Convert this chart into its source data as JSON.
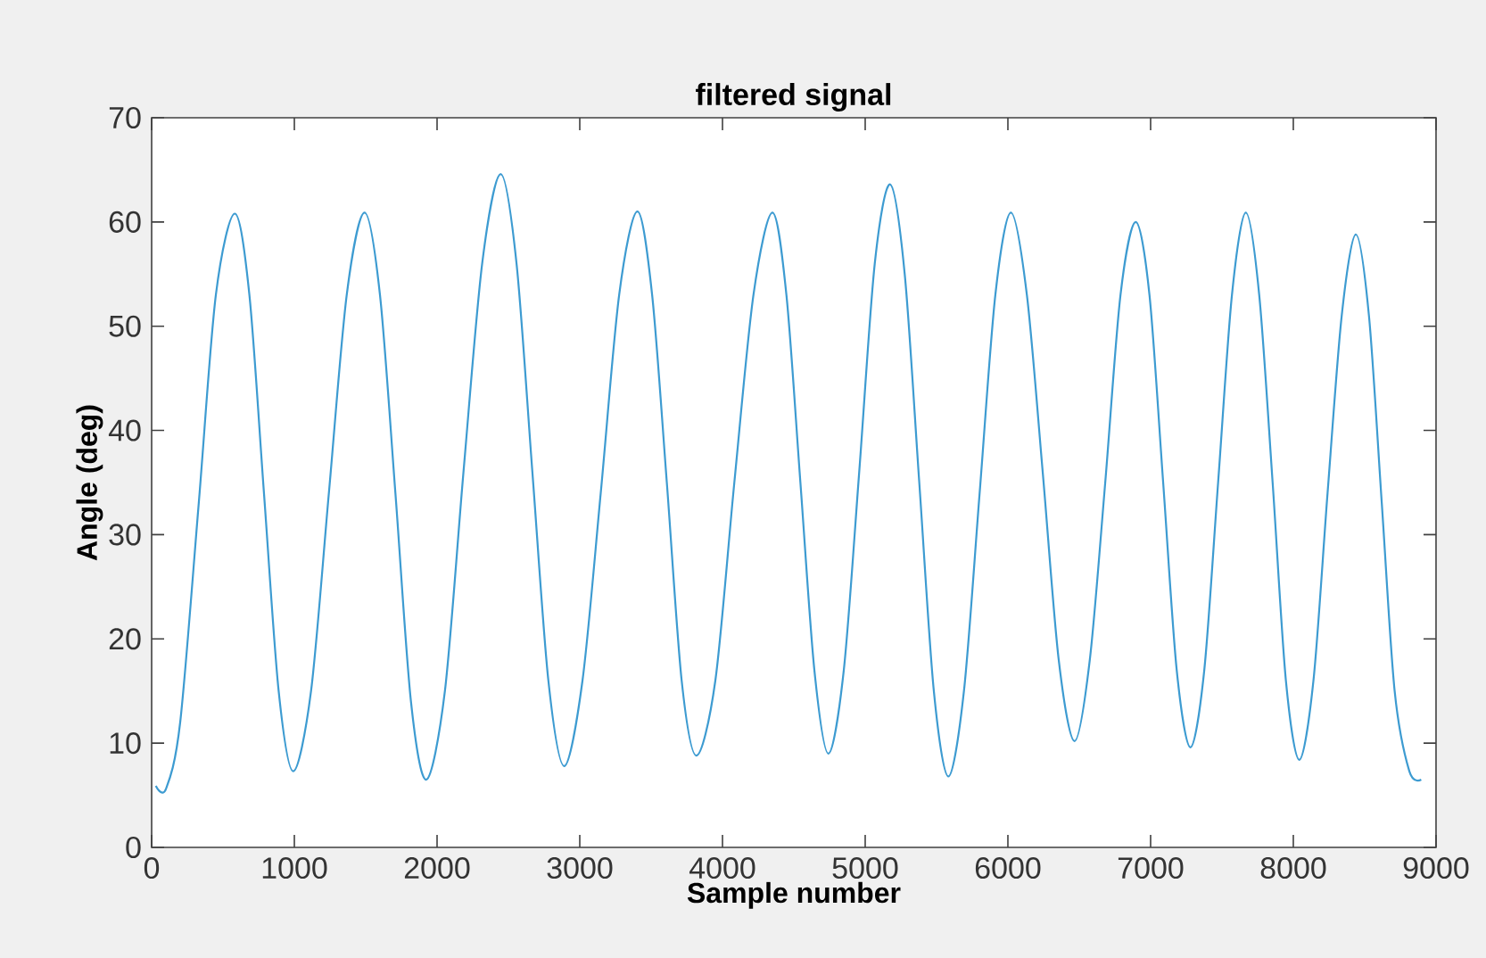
{
  "chart_data": {
    "type": "line",
    "title": "filtered signal",
    "xlabel": "Sample number",
    "ylabel": "Angle (deg)",
    "color": "#3d9bd1",
    "line_style": "solid",
    "marker": "none",
    "x": [
      29,
      100,
      200,
      330,
      450,
      583,
      685,
      787,
      890,
      992,
      1117,
      1242,
      1367,
      1492,
      1600,
      1708,
      1817,
      1925,
      2055,
      2185,
      2316,
      2446,
      2557,
      2668,
      2780,
      2891,
      3019,
      3147,
      3276,
      3404,
      3507,
      3610,
      3714,
      3817,
      3950,
      4083,
      4217,
      4350,
      4448,
      4546,
      4644,
      4742,
      4850,
      4958,
      5067,
      5175,
      5277,
      5379,
      5481,
      5583,
      5692,
      5802,
      5912,
      6021,
      6133,
      6244,
      6356,
      6467,
      6574,
      6682,
      6789,
      6896,
      6992,
      7088,
      7183,
      7279,
      7376,
      7473,
      7570,
      7667,
      7761,
      7855,
      7948,
      8042,
      8141,
      8240,
      8339,
      8438,
      8530,
      8620,
      8710,
      8813,
      8896
    ],
    "values": [
      5.9,
      5.6,
      12,
      33,
      53,
      60.8,
      53,
      34,
      15,
      7.3,
      15,
      34,
      53,
      60.9,
      53,
      34,
      14,
      6.5,
      15,
      36,
      56,
      64.6,
      56,
      36,
      16,
      7.8,
      16,
      34,
      53,
      61,
      53,
      35,
      16,
      8.8,
      16,
      35,
      53,
      60.9,
      53,
      35,
      17,
      9,
      17,
      36,
      56,
      63.6,
      55,
      35,
      15,
      6.8,
      15,
      34,
      53,
      60.9,
      53,
      36,
      18,
      10.2,
      18,
      35,
      53,
      60,
      53,
      35,
      17,
      9.6,
      17,
      35,
      53,
      60.9,
      53,
      35,
      16,
      8.4,
      16,
      34,
      51,
      58.8,
      51,
      33,
      15,
      7.3,
      6.5
    ],
    "xlim": [
      0,
      9000
    ],
    "ylim": [
      0,
      70
    ],
    "xticks": [
      0,
      1000,
      2000,
      3000,
      4000,
      5000,
      6000,
      7000,
      8000,
      9000
    ],
    "yticks": [
      0,
      10,
      20,
      30,
      40,
      50,
      60,
      70
    ]
  }
}
